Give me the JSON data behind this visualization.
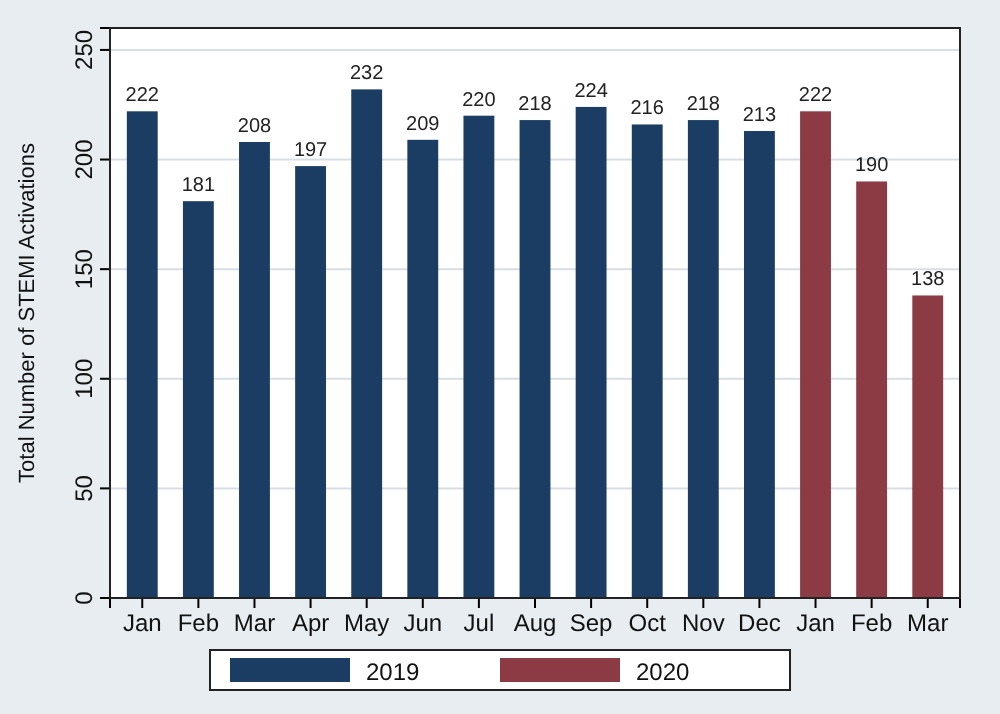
{
  "chart_data": {
    "type": "bar",
    "ylabel": "Total Number of STEMI Activations",
    "categories": [
      "Jan",
      "Feb",
      "Mar",
      "Apr",
      "May",
      "Jun",
      "Jul",
      "Aug",
      "Sep",
      "Oct",
      "Nov",
      "Dec",
      "Jan",
      "Feb",
      "Mar"
    ],
    "series": [
      {
        "name": "2019",
        "color": "#1b3c63",
        "values": [
          222,
          181,
          208,
          197,
          232,
          209,
          220,
          218,
          224,
          216,
          218,
          213,
          null,
          null,
          null
        ]
      },
      {
        "name": "2020",
        "color": "#8c3a43",
        "values": [
          null,
          null,
          null,
          null,
          null,
          null,
          null,
          null,
          null,
          null,
          null,
          null,
          222,
          190,
          138
        ]
      }
    ],
    "ylim": [
      0,
      260
    ],
    "yticks": [
      0,
      50,
      100,
      150,
      200,
      250
    ],
    "grid": "y",
    "data_labels": true,
    "legend": "bottom"
  }
}
